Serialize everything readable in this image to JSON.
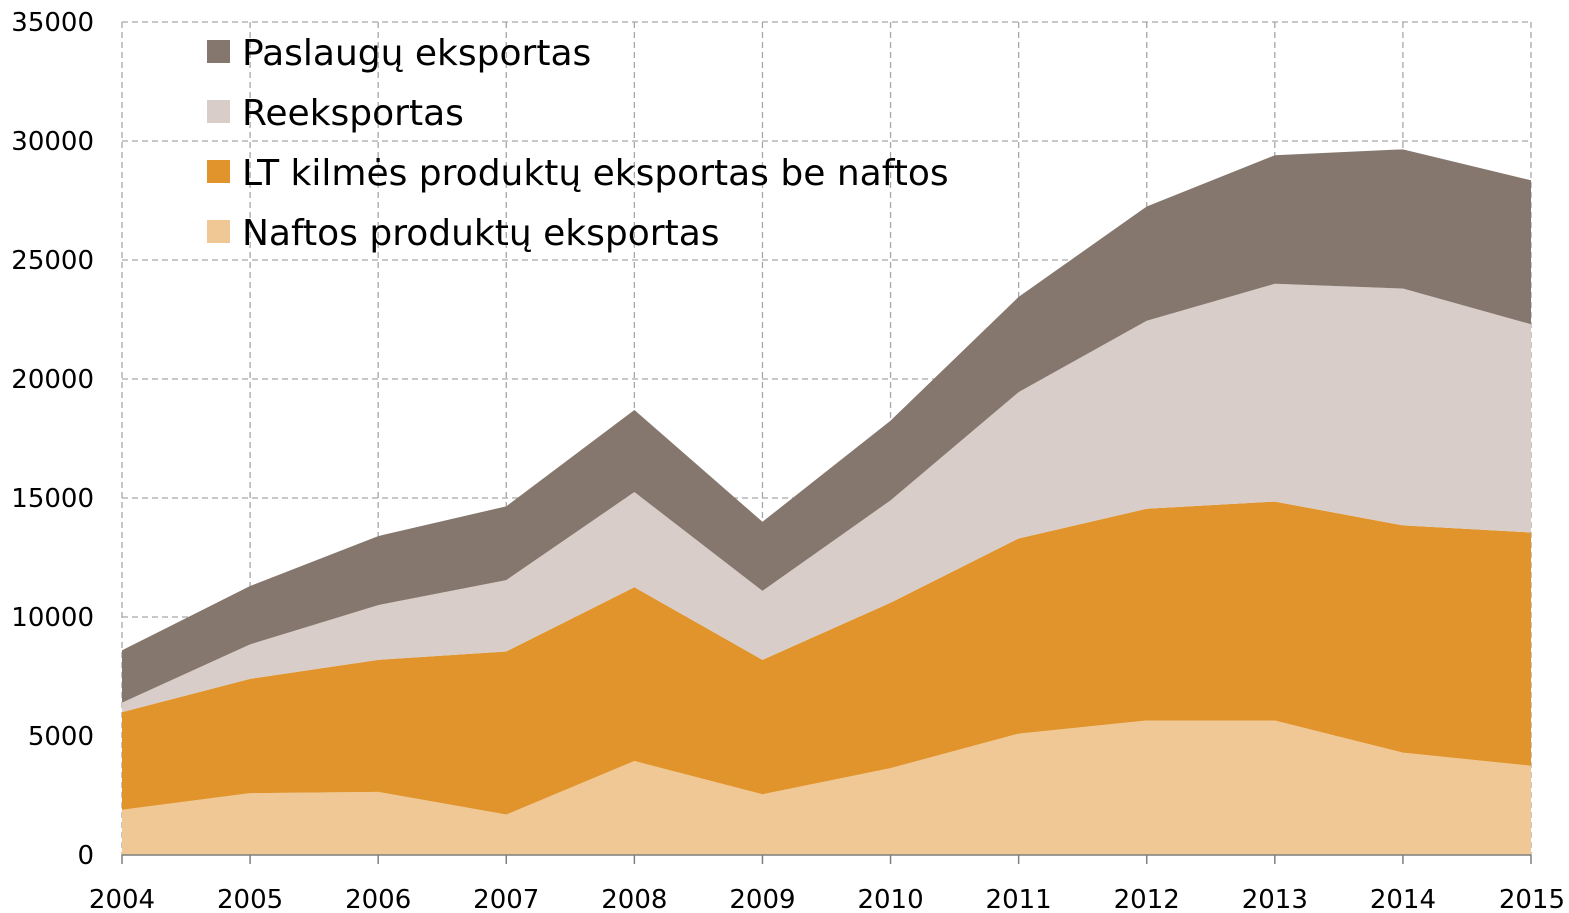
{
  "chart_data": {
    "type": "area",
    "stacked": true,
    "x": [
      "2004",
      "2005",
      "2006",
      "2007",
      "2008",
      "2009",
      "2010",
      "2011",
      "2012",
      "2013",
      "2014",
      "2015"
    ],
    "series": [
      {
        "name": "Naftos produktų eksportas",
        "color": "#f0c896",
        "values": [
          1900,
          2600,
          2650,
          1700,
          3950,
          2550,
          3650,
          5100,
          5650,
          5650,
          4300,
          3750
        ]
      },
      {
        "name": "LT kilmės produktų eksportas be naftos",
        "color": "#e0942b",
        "values": [
          4100,
          4800,
          5550,
          6850,
          7300,
          5650,
          6950,
          8200,
          8900,
          9200,
          9550,
          9800
        ]
      },
      {
        "name": "Reeksportas",
        "color": "#d8cdc8",
        "values": [
          400,
          1450,
          2300,
          3000,
          4000,
          2900,
          4300,
          6150,
          7900,
          9150,
          9950,
          8750
        ]
      },
      {
        "name": "Paslaugų eksportas",
        "color": "#85776d",
        "values": [
          2200,
          2450,
          2900,
          3100,
          3450,
          2900,
          3350,
          4000,
          4800,
          5400,
          5850,
          6050
        ]
      }
    ],
    "legend_order": [
      "Paslaugų eksportas",
      "Reeksportas",
      "LT kilmės produktų eksportas be naftos",
      "Naftos produktų eksportas"
    ],
    "legend_position": "top-left",
    "ylim": [
      0,
      35000
    ],
    "yticks": [
      "0",
      "5000",
      "10000",
      "15000",
      "20000",
      "25000",
      "30000",
      "35000"
    ],
    "title": "",
    "xlabel": "",
    "ylabel": "",
    "grid": true
  }
}
